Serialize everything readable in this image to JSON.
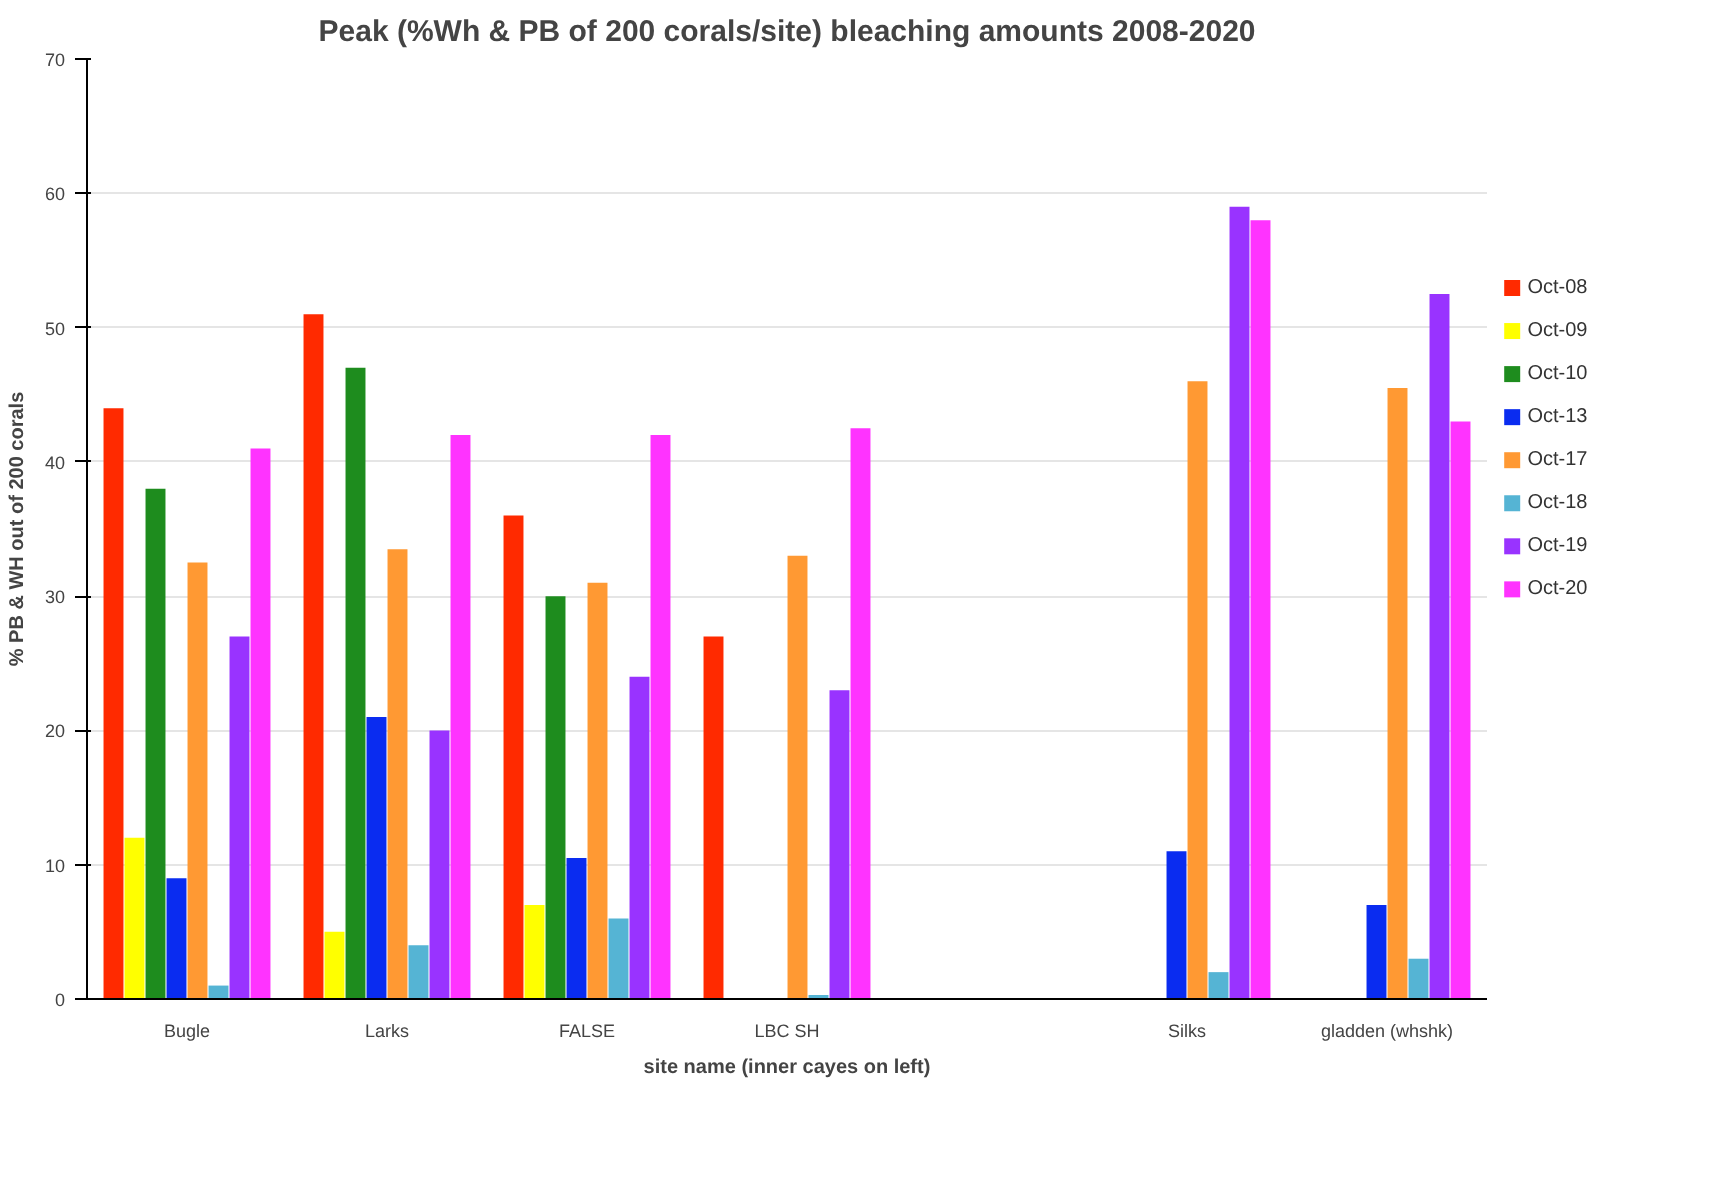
{
  "chart_data": {
    "type": "bar",
    "title": "Peak (%Wh & PB of 200 corals/site) bleaching amounts 2008-2020",
    "xlabel": "site name (inner cayes on left)",
    "ylabel": "% PB & WH out of 200 corals",
    "categories": [
      "Bugle",
      "Larks",
      "FALSE",
      "LBC SH",
      null,
      "Silks",
      "gladden (whshk)"
    ],
    "series": [
      {
        "name": "Oct-08",
        "color": "#ff2a00",
        "values": [
          44,
          51,
          36,
          27,
          null,
          null,
          null
        ]
      },
      {
        "name": "Oct-09",
        "color": "#ffff00",
        "values": [
          12,
          5,
          7,
          null,
          null,
          null,
          null
        ]
      },
      {
        "name": "Oct-10",
        "color": "#1e8c1e",
        "values": [
          38,
          47,
          30,
          null,
          null,
          null,
          null
        ]
      },
      {
        "name": "Oct-13",
        "color": "#0a2cf0",
        "values": [
          9,
          21,
          10.5,
          null,
          null,
          11,
          7
        ]
      },
      {
        "name": "Oct-17",
        "color": "#ff9933",
        "values": [
          32.5,
          33.5,
          31,
          33,
          null,
          46,
          45.5
        ]
      },
      {
        "name": "Oct-18",
        "color": "#55b4d4",
        "values": [
          1,
          4,
          6,
          0.3,
          null,
          2,
          3
        ]
      },
      {
        "name": "Oct-19",
        "color": "#9933ff",
        "values": [
          27,
          20,
          24,
          23,
          null,
          59,
          52.5
        ]
      },
      {
        "name": "Oct-20",
        "color": "#ff33ff",
        "values": [
          41,
          42,
          42,
          42.5,
          null,
          58,
          43
        ]
      }
    ],
    "ylim": [
      0,
      70
    ],
    "yticks": [
      0,
      10,
      20,
      30,
      40,
      50,
      60,
      70
    ],
    "grid": "y",
    "legend": "right"
  }
}
